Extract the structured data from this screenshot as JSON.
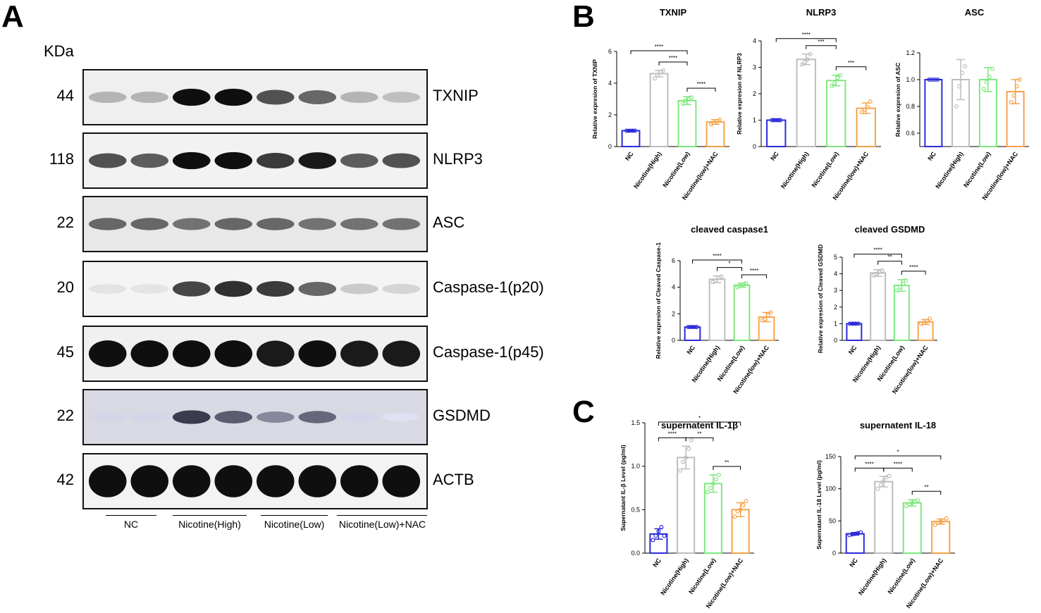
{
  "panels": {
    "a": "A",
    "b": "B",
    "c": "C"
  },
  "western": {
    "kda_label": "KDa",
    "proteins": [
      {
        "name": "TXNIP",
        "kda": "44"
      },
      {
        "name": "NLRP3",
        "kda": "118"
      },
      {
        "name": "ASC",
        "kda": "22"
      },
      {
        "name": "Caspase-1(p20)",
        "kda": "20"
      },
      {
        "name": "Caspase-1(p45)",
        "kda": "45"
      },
      {
        "name": "GSDMD",
        "kda": "22"
      },
      {
        "name": "ACTB",
        "kda": "42"
      }
    ],
    "groups": [
      "NC",
      "Nicotine(High)",
      "Nicotine(Low)",
      "Nicotine(Low)+NAC"
    ]
  },
  "colors": {
    "nc": "#2b2bd9",
    "high": "#bdbdbd",
    "low": "#7ee87e",
    "nac": "#f5a34a",
    "blot_bg": "#eeeeee",
    "band": "#111111"
  },
  "chart_data": [
    {
      "type": "bar",
      "title": "TXNIP",
      "ylabel": "Relative expresion of TXNIP",
      "categories": [
        "NC",
        "Nicotine(High)",
        "Nicotine(Low)",
        "Nicotine(low)+NAC"
      ],
      "values": [
        1.0,
        4.6,
        2.9,
        1.55
      ],
      "errors": [
        0.05,
        0.2,
        0.25,
        0.15
      ],
      "points": [
        [
          1,
          1,
          1,
          1
        ],
        [
          4.3,
          4.5,
          4.7,
          4.8
        ],
        [
          2.7,
          2.9,
          3.0,
          3.1
        ],
        [
          1.4,
          1.5,
          1.6,
          1.7
        ]
      ],
      "ylim": [
        0,
        6
      ],
      "yticks": [
        "0",
        "2",
        "4",
        "6"
      ],
      "sig": [
        {
          "from": 0,
          "to": 2,
          "label": "****"
        },
        {
          "from": 1,
          "to": 2,
          "label": "****"
        },
        {
          "from": 2,
          "to": 3,
          "label": "****"
        }
      ]
    },
    {
      "type": "bar",
      "title": "NLRP3",
      "ylabel": "Relative expresion of NLRP3",
      "categories": [
        "NC",
        "Nicotine(High)",
        "Nicotine(Low)",
        "Nicotine(low)+NAC"
      ],
      "values": [
        1.0,
        3.3,
        2.5,
        1.45
      ],
      "errors": [
        0.05,
        0.2,
        0.2,
        0.2
      ],
      "points": [
        [
          1,
          1,
          1,
          1
        ],
        [
          3.1,
          3.2,
          3.3,
          3.5
        ],
        [
          2.3,
          2.4,
          2.6,
          2.7
        ],
        [
          1.3,
          1.4,
          1.5,
          1.7
        ]
      ],
      "ylim": [
        0,
        4
      ],
      "yticks": [
        "0",
        "1",
        "2",
        "3",
        "4"
      ],
      "sig": [
        {
          "from": 0,
          "to": 2,
          "label": "****"
        },
        {
          "from": 1,
          "to": 2,
          "label": "***"
        },
        {
          "from": 2,
          "to": 3,
          "label": "***"
        }
      ]
    },
    {
      "type": "bar",
      "title": "ASC",
      "ylabel": "Relative expresion of ASC",
      "categories": [
        "NC",
        "Nicotine(High)",
        "Nicotine(Low)",
        "Nicotine(low)+NAC"
      ],
      "values": [
        1.0,
        1.0,
        1.0,
        0.91
      ],
      "errors": [
        0.0,
        0.15,
        0.09,
        0.09
      ],
      "points": [
        [
          1,
          1,
          1,
          1
        ],
        [
          0.8,
          0.95,
          1.05,
          1.1
        ],
        [
          0.93,
          0.98,
          1.02,
          1.08
        ],
        [
          0.83,
          0.88,
          0.95,
          1.0
        ]
      ],
      "ylim": [
        0.5,
        1.2
      ],
      "yticks": [
        "0.6",
        "0.8",
        "1.0",
        "1.2"
      ],
      "sig": []
    },
    {
      "type": "bar",
      "title": "cleaved caspase1",
      "ylabel": "Relative expresion of Cleaved Caspase-1",
      "categories": [
        "NC",
        "Nicotine(High)",
        "Nicotine(Low)",
        "Nicotine(low)+NAC"
      ],
      "values": [
        1.0,
        4.6,
        4.15,
        1.75
      ],
      "errors": [
        0.05,
        0.25,
        0.15,
        0.35
      ],
      "points": [
        [
          1,
          1,
          1,
          1
        ],
        [
          4.4,
          4.5,
          4.7,
          4.8
        ],
        [
          4.0,
          4.1,
          4.2,
          4.3
        ],
        [
          1.5,
          1.6,
          1.9,
          2.1
        ]
      ],
      "ylim": [
        0,
        6
      ],
      "yticks": [
        "0",
        "2",
        "4",
        "6"
      ],
      "sig": [
        {
          "from": 0,
          "to": 2,
          "label": "****"
        },
        {
          "from": 1,
          "to": 2,
          "label": "*"
        },
        {
          "from": 2,
          "to": 3,
          "label": "****"
        }
      ]
    },
    {
      "type": "bar",
      "title": "cleaved GSDMD",
      "ylabel": "Relative expresion of Cleaved GSDMD",
      "categories": [
        "NC",
        "Nicotine(High)",
        "Nicotine(Low)",
        "Nicotine(low)+NAC"
      ],
      "values": [
        1.0,
        4.05,
        3.3,
        1.1
      ],
      "errors": [
        0.05,
        0.2,
        0.35,
        0.15
      ],
      "points": [
        [
          1,
          1,
          1,
          1
        ],
        [
          3.9,
          4.0,
          4.1,
          4.2
        ],
        [
          3.0,
          3.2,
          3.4,
          3.6
        ],
        [
          1.0,
          1.05,
          1.15,
          1.3
        ]
      ],
      "ylim": [
        0,
        5
      ],
      "yticks": [
        "0",
        "1",
        "2",
        "3",
        "4",
        "5"
      ],
      "sig": [
        {
          "from": 0,
          "to": 2,
          "label": "****"
        },
        {
          "from": 1,
          "to": 2,
          "label": "**"
        },
        {
          "from": 2,
          "to": 3,
          "label": "****"
        }
      ]
    },
    {
      "type": "bar",
      "title": "supernatent IL-1β",
      "ylabel": "Supernatant IL-β Level (pg/ml)",
      "categories": [
        "NC",
        "Nicotine(High)",
        "Nicotine(Low)",
        "Nicotine(Low)+NAC"
      ],
      "values": [
        0.22,
        1.1,
        0.8,
        0.5
      ],
      "errors": [
        0.06,
        0.13,
        0.1,
        0.08
      ],
      "points": [
        [
          0.15,
          0.2,
          0.25,
          0.3,
          0.2
        ],
        [
          0.95,
          1.05,
          1.1,
          1.2,
          1.3
        ],
        [
          0.7,
          0.75,
          0.8,
          0.85,
          0.9
        ],
        [
          0.42,
          0.48,
          0.5,
          0.55,
          0.6
        ]
      ],
      "ylim": [
        0,
        1.5
      ],
      "yticks": [
        "0.0",
        "0.5",
        "1.0",
        "1.5"
      ],
      "sig": [
        {
          "from": 0,
          "to": 1,
          "label": "****"
        },
        {
          "from": 1,
          "to": 2,
          "label": "**"
        },
        {
          "from": 0,
          "to": 3,
          "label": "*"
        },
        {
          "from": 2,
          "to": 3,
          "label": "**"
        }
      ]
    },
    {
      "type": "bar",
      "title": "supernatent IL-18",
      "ylabel": "Supernatant IL-18 Level (pg/ml)",
      "categories": [
        "NC",
        "Nicotine(High)",
        "Nicotine(Low)",
        "Nicotine(Low)+NAC"
      ],
      "values": [
        30,
        111,
        78,
        49
      ],
      "errors": [
        2,
        8,
        5,
        4
      ],
      "points": [
        [
          28,
          29,
          30,
          31,
          32
        ],
        [
          100,
          106,
          112,
          118,
          120
        ],
        [
          73,
          76,
          78,
          80,
          82
        ],
        [
          44,
          47,
          49,
          51,
          54
        ]
      ],
      "ylim": [
        0,
        150
      ],
      "yticks": [
        "0",
        "50",
        "100",
        "150"
      ],
      "sig": [
        {
          "from": 0,
          "to": 1,
          "label": "****"
        },
        {
          "from": 1,
          "to": 2,
          "label": "****"
        },
        {
          "from": 0,
          "to": 3,
          "label": "*"
        },
        {
          "from": 2,
          "to": 3,
          "label": "**"
        }
      ]
    }
  ]
}
